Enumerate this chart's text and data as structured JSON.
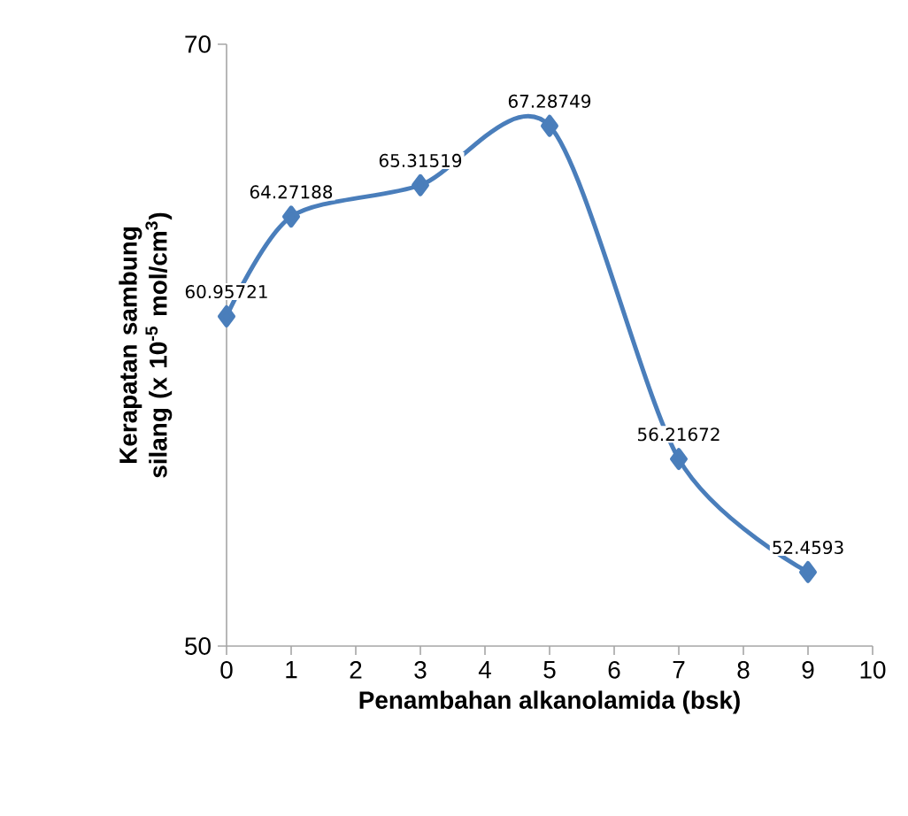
{
  "chart_data": {
    "type": "line",
    "xlabel": "Penambahan alkanolamida (bsk)",
    "ylabel": "Kerapatan sambung silang (x 10$^{-5}$ mol/cm$^{3}$)",
    "x": [
      0,
      1,
      3,
      5,
      7,
      9
    ],
    "values": [
      60.95721,
      64.27188,
      65.31519,
      67.28749,
      56.21672,
      52.4593
    ],
    "value_labels": [
      "60.95721",
      "64.27188",
      "65.31519",
      "67.28749",
      "56.21672",
      "52.4593"
    ],
    "color": "#4a7ebb",
    "marker": "diamond",
    "line_style": "solid",
    "xlim": [
      0,
      10
    ],
    "xticks": [
      0,
      1,
      2,
      3,
      4,
      5,
      6,
      7,
      8,
      9,
      10
    ],
    "ylim": [
      50,
      70
    ],
    "yticks": [
      50,
      70
    ],
    "grid": false
  }
}
